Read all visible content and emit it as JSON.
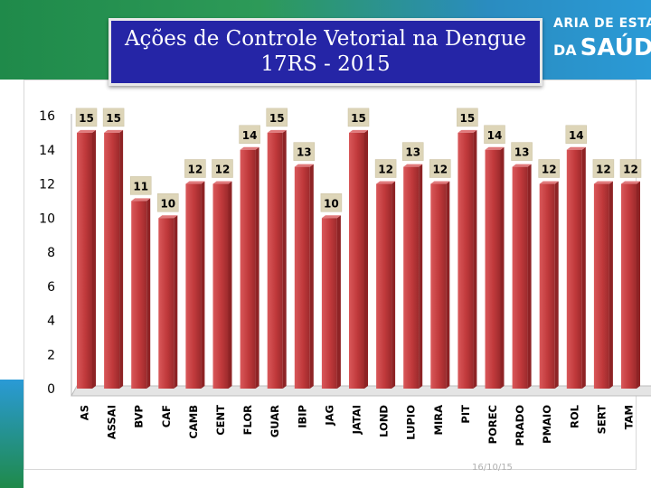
{
  "header": {
    "logo_line1": "ARIA DE ESTADO",
    "logo_da": "DA",
    "logo_line2": "SAÚDE",
    "colors": {
      "green": "#1f8a4a",
      "blue": "#2a9ad6"
    }
  },
  "footer": {
    "date": "16/10/15"
  },
  "chart_data": {
    "type": "bar",
    "title": "Ações de Controle Vetorial na Dengue",
    "subtitle": "17RS - 2015",
    "categories": [
      "AS",
      "ASSAI",
      "BVP",
      "CAF",
      "CAMB",
      "CENT",
      "FLOR",
      "GUAR",
      "IBIP",
      "JAG",
      "JATAI",
      "LOND",
      "LUPIO",
      "MIRA",
      "PIT",
      "POREC",
      "PRADO",
      "PMAIO",
      "ROL",
      "SERT",
      "TAM"
    ],
    "values": [
      15,
      15,
      11,
      10,
      12,
      12,
      14,
      15,
      13,
      10,
      15,
      12,
      13,
      12,
      15,
      14,
      13,
      12,
      14,
      12,
      12
    ],
    "ylim": [
      0,
      16
    ],
    "yticks": [
      "0",
      "2",
      "4",
      "6",
      "8",
      "10",
      "12",
      "14",
      "16"
    ],
    "ytick_values": [
      0,
      2,
      4,
      6,
      8,
      10,
      12,
      14,
      16
    ],
    "xlabel": "",
    "ylabel": "",
    "grid": false,
    "legend": "none",
    "colors": {
      "bar": "#c0393b",
      "bar_dark": "#8e2325",
      "label_box": "#ddd5b8"
    }
  }
}
